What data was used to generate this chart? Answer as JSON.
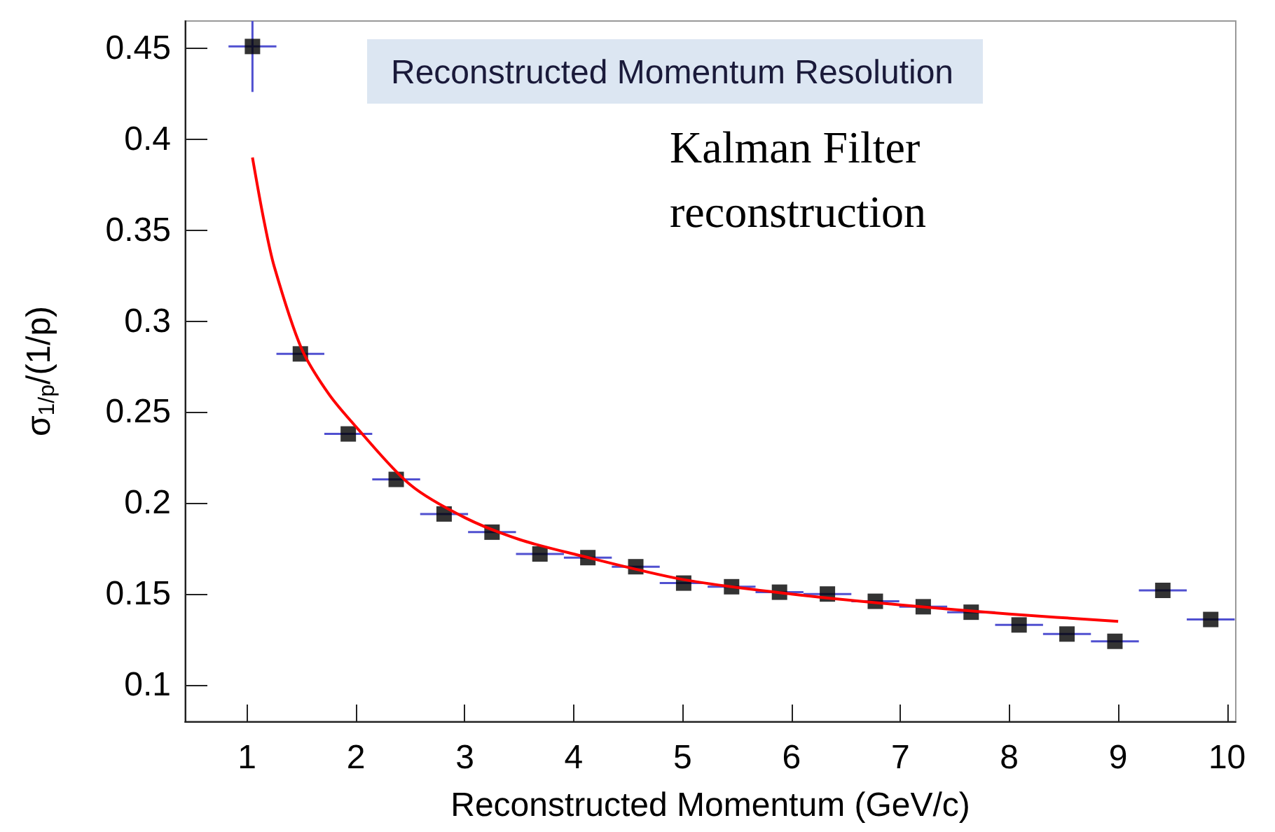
{
  "chart_data": {
    "type": "scatter",
    "title": "Reconstructed Momentum Resolution",
    "xlabel": "Reconstructed Momentum (GeV/c)",
    "ylabel": "σ$_{1/p}$/(1/p)",
    "annotations": [
      "Kalman Filter\nreconstruction"
    ],
    "xlim": [
      0.43,
      10.08
    ],
    "ylim": [
      0.08,
      0.465
    ],
    "xticks": [
      1,
      2,
      3,
      4,
      5,
      6,
      7,
      8,
      9,
      10
    ],
    "yticks": [
      0.1,
      0.15,
      0.2,
      0.25,
      0.3,
      0.35,
      0.4,
      0.45
    ],
    "series": [
      {
        "color": "#000000",
        "marker": "square",
        "x": [
          1.05,
          1.49,
          1.93,
          2.37,
          2.81,
          3.25,
          3.69,
          4.13,
          4.57,
          5.01,
          5.45,
          5.89,
          6.33,
          6.77,
          7.21,
          7.65,
          8.09,
          8.53,
          8.97,
          9.41,
          9.85
        ],
        "values": [
          0.451,
          0.282,
          0.238,
          0.213,
          0.194,
          0.184,
          0.172,
          0.17,
          0.165,
          0.156,
          0.154,
          0.151,
          0.15,
          0.146,
          0.143,
          0.14,
          0.133,
          0.128,
          0.124,
          0.152,
          0.136
        ],
        "errors": [
          [
            0.426,
            0.465
          ],
          null,
          null,
          null,
          null,
          null,
          null,
          null,
          null,
          null,
          null,
          null,
          null,
          null,
          null,
          null,
          null,
          null,
          null,
          null,
          null
        ],
        "xerrors": [
          0.22,
          0.22,
          0.22,
          0.22,
          0.22,
          0.22,
          0.22,
          0.22,
          0.22,
          0.22,
          0.22,
          0.22,
          0.22,
          0.22,
          0.22,
          0.22,
          0.22,
          0.22,
          0.22,
          0.22,
          0.22
        ]
      },
      {
        "type": "line",
        "color": "#ff0000",
        "marker": "none",
        "line_style": "solid",
        "x": [
          1.05,
          1.15,
          1.25,
          1.5,
          1.75,
          2,
          2.5,
          3,
          3.5,
          4,
          5,
          6,
          7,
          8,
          9
        ],
        "values": [
          0.39,
          0.357,
          0.33,
          0.285,
          0.26,
          0.242,
          0.21,
          0.192,
          0.18,
          0.172,
          0.158,
          0.15,
          0.144,
          0.139,
          0.135
        ]
      }
    ]
  }
}
